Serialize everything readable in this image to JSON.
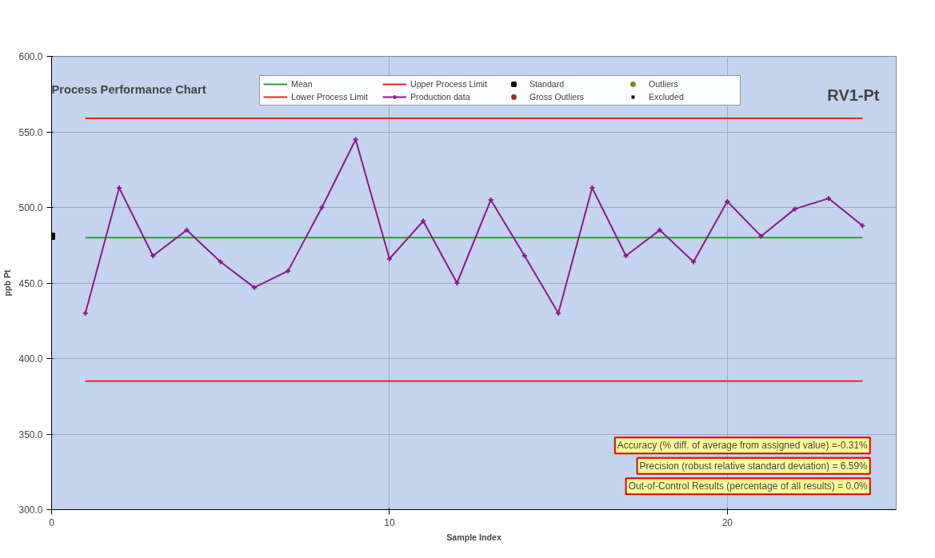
{
  "chart_data": {
    "type": "line",
    "title": "Process Performance Chart",
    "subtitle": "RV1-Pt",
    "xlabel": "Sample Index",
    "ylabel": "ppb Pt",
    "xlim": [
      0,
      25
    ],
    "xticks": [
      0,
      10,
      20
    ],
    "ylim": [
      300,
      600
    ],
    "yticks": [
      {
        "value": 300,
        "label": "300.0"
      },
      {
        "value": 350,
        "label": "350.0"
      },
      {
        "value": 400,
        "label": "400.0"
      },
      {
        "value": 450,
        "label": "450.0"
      },
      {
        "value": 500,
        "label": "500.0"
      },
      {
        "value": 550,
        "label": "550.0"
      },
      {
        "value": 600,
        "label": "600.0"
      }
    ],
    "grid": true,
    "legend": "top",
    "series": [
      {
        "name": "Mean",
        "color": "#2e9a3a",
        "marker": "none",
        "x": [
          1,
          24
        ],
        "values": [
          480,
          480
        ]
      },
      {
        "name": "Lower Process Limit",
        "color": "#e8262a",
        "marker": "none",
        "x": [
          1,
          24
        ],
        "values": [
          385,
          385
        ]
      },
      {
        "name": "Upper Process Limit",
        "color": "#e8262a",
        "marker": "none",
        "x": [
          1,
          24
        ],
        "values": [
          559,
          559
        ]
      },
      {
        "name": "Production data",
        "color": "#8b1a8b",
        "marker": "cross",
        "x": [
          1,
          2,
          3,
          4,
          5,
          6,
          7,
          8,
          9,
          10,
          11,
          12,
          13,
          14,
          15,
          16,
          17,
          18,
          19,
          20,
          21,
          22,
          23,
          24
        ],
        "values": [
          430,
          513,
          468,
          485,
          464,
          447,
          458,
          500,
          545,
          466,
          491,
          450,
          505,
          468,
          430,
          513,
          468,
          485,
          464,
          504,
          481,
          499,
          506,
          488
        ]
      },
      {
        "name": "Standard",
        "color": "#000000",
        "type": "scatter",
        "marker": "square",
        "x": [
          0
        ],
        "values": [
          481
        ]
      },
      {
        "name": "Gross Outliers",
        "color": "#8b3a2a",
        "type": "scatter",
        "marker": "circle"
      },
      {
        "name": "Outliers",
        "color": "#7a8a20",
        "type": "scatter",
        "marker": "circle"
      },
      {
        "name": "Excluded",
        "color": "#000000",
        "type": "scatter",
        "marker": "x"
      }
    ],
    "annotations": [
      "Accuracy (% diff. of average from assigned value) =-0.31%",
      "Precision (robust relative standard deviation) = 6.59%",
      "Out-of-Control Results (percentage of all results) = 0.0%"
    ]
  }
}
